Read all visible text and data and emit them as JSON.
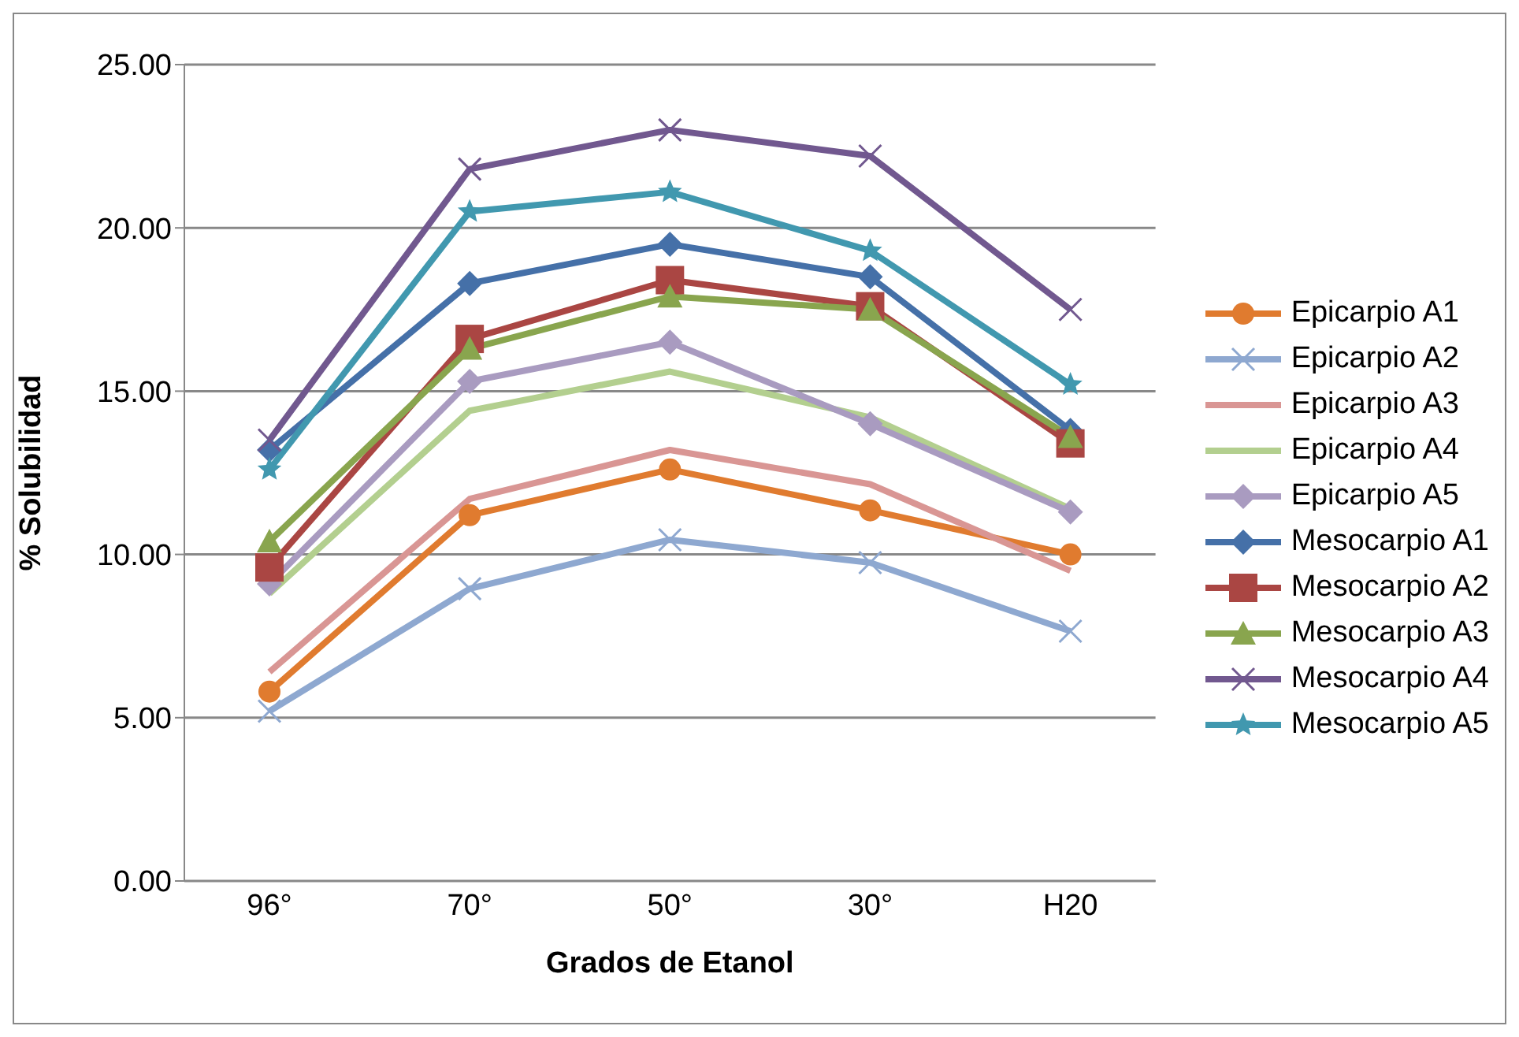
{
  "chart_data": {
    "type": "line",
    "xlabel": "Grados de Etanol",
    "ylabel": "% Solubilidad",
    "categories": [
      "96°",
      "70°",
      "50°",
      "30°",
      "H20"
    ],
    "ylim": [
      0,
      25
    ],
    "yticks": [
      {
        "value": 0,
        "label": "0.00"
      },
      {
        "value": 5,
        "label": "5.00"
      },
      {
        "value": 10,
        "label": "10.00"
      },
      {
        "value": 15,
        "label": "15.00"
      },
      {
        "value": 20,
        "label": "20.00"
      },
      {
        "value": 25,
        "label": "25.00"
      }
    ],
    "grid": "y",
    "legend": "right",
    "series": [
      {
        "name": "Epicarpio A1",
        "color": "#e07b2f",
        "marker": "circle",
        "values": [
          5.8,
          11.2,
          12.6,
          11.35,
          10.0
        ]
      },
      {
        "name": "Epicarpio A2",
        "color": "#8ea8d0",
        "marker": "cross",
        "values": [
          5.2,
          8.95,
          10.45,
          9.75,
          7.65
        ]
      },
      {
        "name": "Epicarpio A3",
        "color": "#d99694",
        "marker": "none",
        "values": [
          6.4,
          11.7,
          13.2,
          12.15,
          9.5
        ]
      },
      {
        "name": "Epicarpio A4",
        "color": "#b3cf8f",
        "marker": "none",
        "values": [
          8.8,
          14.4,
          15.6,
          14.2,
          11.4
        ]
      },
      {
        "name": "Epicarpio A5",
        "color": "#a99bc0",
        "marker": "diamond",
        "values": [
          9.1,
          15.3,
          16.5,
          14.0,
          11.3
        ]
      },
      {
        "name": "Mesocarpio A1",
        "color": "#4570a8",
        "marker": "diamond",
        "values": [
          13.2,
          18.3,
          19.5,
          18.5,
          13.8
        ]
      },
      {
        "name": "Mesocarpio A2",
        "color": "#aa4643",
        "marker": "square",
        "values": [
          9.6,
          16.6,
          18.4,
          17.6,
          13.4
        ]
      },
      {
        "name": "Mesocarpio A3",
        "color": "#89a54e",
        "marker": "triangle",
        "values": [
          10.4,
          16.3,
          17.9,
          17.5,
          13.6
        ]
      },
      {
        "name": "Mesocarpio A4",
        "color": "#71588f",
        "marker": "cross",
        "values": [
          13.5,
          21.8,
          23.0,
          22.2,
          17.5
        ]
      },
      {
        "name": "Mesocarpio A5",
        "color": "#4198af",
        "marker": "star",
        "values": [
          12.6,
          20.5,
          21.1,
          19.3,
          15.2
        ]
      }
    ]
  }
}
